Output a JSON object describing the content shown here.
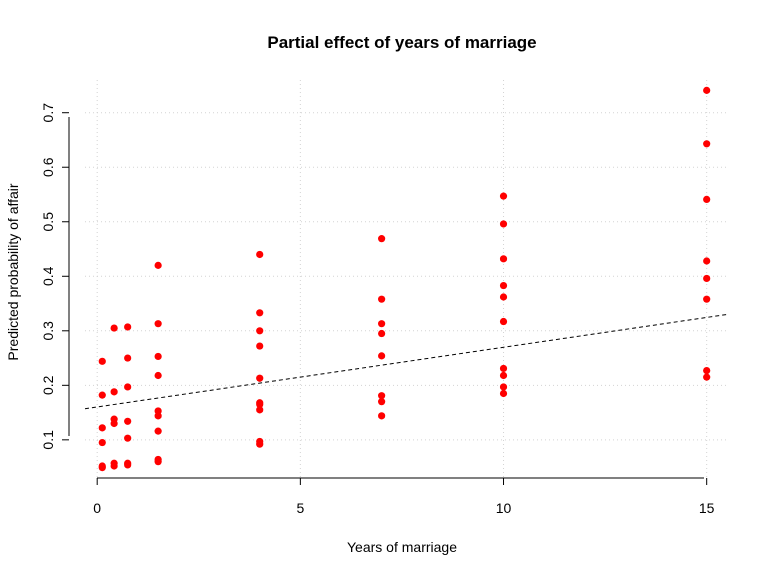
{
  "chart_data": {
    "type": "scatter",
    "title": "Partial effect of years of marriage",
    "xlabel": "Years of marriage",
    "ylabel": "Predicted probability of affair",
    "xlim": [
      -0.3,
      15.5
    ],
    "ylim": [
      0.03,
      0.76
    ],
    "xticks": [
      0,
      5,
      10,
      15
    ],
    "yticks": [
      0.1,
      0.2,
      0.3,
      0.4,
      0.5,
      0.6,
      0.7
    ],
    "grid": true,
    "point_color": "#ff0000",
    "trend_line": {
      "style": "dashed",
      "color": "#000000",
      "x": [
        -0.3,
        15.5
      ],
      "y": [
        0.157,
        0.33
      ]
    },
    "points": [
      {
        "x": 0.125,
        "y": 0.244
      },
      {
        "x": 0.125,
        "y": 0.182
      },
      {
        "x": 0.125,
        "y": 0.122
      },
      {
        "x": 0.125,
        "y": 0.095
      },
      {
        "x": 0.125,
        "y": 0.052
      },
      {
        "x": 0.125,
        "y": 0.049
      },
      {
        "x": 0.417,
        "y": 0.305
      },
      {
        "x": 0.417,
        "y": 0.188
      },
      {
        "x": 0.417,
        "y": 0.138
      },
      {
        "x": 0.417,
        "y": 0.13
      },
      {
        "x": 0.417,
        "y": 0.057
      },
      {
        "x": 0.417,
        "y": 0.052
      },
      {
        "x": 0.75,
        "y": 0.307
      },
      {
        "x": 0.75,
        "y": 0.25
      },
      {
        "x": 0.75,
        "y": 0.197
      },
      {
        "x": 0.75,
        "y": 0.134
      },
      {
        "x": 0.75,
        "y": 0.103
      },
      {
        "x": 0.75,
        "y": 0.057
      },
      {
        "x": 0.75,
        "y": 0.054
      },
      {
        "x": 1.5,
        "y": 0.42
      },
      {
        "x": 1.5,
        "y": 0.313
      },
      {
        "x": 1.5,
        "y": 0.253
      },
      {
        "x": 1.5,
        "y": 0.218
      },
      {
        "x": 1.5,
        "y": 0.153
      },
      {
        "x": 1.5,
        "y": 0.144
      },
      {
        "x": 1.5,
        "y": 0.116
      },
      {
        "x": 1.5,
        "y": 0.064
      },
      {
        "x": 1.5,
        "y": 0.06
      },
      {
        "x": 4,
        "y": 0.44
      },
      {
        "x": 4,
        "y": 0.333
      },
      {
        "x": 4,
        "y": 0.3
      },
      {
        "x": 4,
        "y": 0.272
      },
      {
        "x": 4,
        "y": 0.213
      },
      {
        "x": 4,
        "y": 0.168
      },
      {
        "x": 4,
        "y": 0.165
      },
      {
        "x": 4,
        "y": 0.155
      },
      {
        "x": 4,
        "y": 0.097
      },
      {
        "x": 4,
        "y": 0.092
      },
      {
        "x": 7,
        "y": 0.469
      },
      {
        "x": 7,
        "y": 0.358
      },
      {
        "x": 7,
        "y": 0.313
      },
      {
        "x": 7,
        "y": 0.295
      },
      {
        "x": 7,
        "y": 0.254
      },
      {
        "x": 7,
        "y": 0.181
      },
      {
        "x": 7,
        "y": 0.17
      },
      {
        "x": 7,
        "y": 0.144
      },
      {
        "x": 10,
        "y": 0.547
      },
      {
        "x": 10,
        "y": 0.496
      },
      {
        "x": 10,
        "y": 0.432
      },
      {
        "x": 10,
        "y": 0.383
      },
      {
        "x": 10,
        "y": 0.362
      },
      {
        "x": 10,
        "y": 0.317
      },
      {
        "x": 10,
        "y": 0.231
      },
      {
        "x": 10,
        "y": 0.218
      },
      {
        "x": 10,
        "y": 0.197
      },
      {
        "x": 10,
        "y": 0.185
      },
      {
        "x": 15,
        "y": 0.741
      },
      {
        "x": 15,
        "y": 0.643
      },
      {
        "x": 15,
        "y": 0.541
      },
      {
        "x": 15,
        "y": 0.428
      },
      {
        "x": 15,
        "y": 0.396
      },
      {
        "x": 15,
        "y": 0.358
      },
      {
        "x": 15,
        "y": 0.227
      },
      {
        "x": 15,
        "y": 0.215
      }
    ]
  }
}
